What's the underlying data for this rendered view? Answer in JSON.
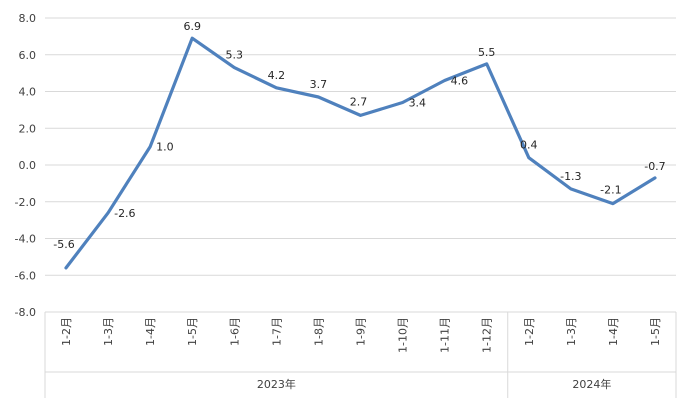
{
  "chart_data": {
    "type": "line",
    "title": "",
    "xlabel": "",
    "ylabel": "",
    "ylim": [
      -8,
      8
    ],
    "y_ticks": [
      "8.0",
      "6.0",
      "4.0",
      "2.0",
      "0.0",
      "-2.0",
      "-4.0",
      "-6.0",
      "-8.0"
    ],
    "grid": true,
    "legend": "none",
    "line_color": "#4F81BD",
    "categories": [
      "1-2月",
      "1-3月",
      "1-4月",
      "1-5月",
      "1-6月",
      "1-7月",
      "1-8月",
      "1-9月",
      "1-10月",
      "1-11月",
      "1-12月",
      "1-2月",
      "1-3月",
      "1-4月",
      "1-5月"
    ],
    "groups": [
      {
        "label": "2023年",
        "count": 11
      },
      {
        "label": "2024年",
        "count": 4
      }
    ],
    "series": [
      {
        "values": [
          -5.6,
          -2.6,
          1.0,
          6.9,
          5.3,
          4.2,
          3.7,
          2.7,
          3.4,
          4.6,
          5.5,
          0.4,
          -1.3,
          -2.1,
          -0.7
        ],
        "labels": [
          "-5.6",
          "-2.6",
          "1.0",
          "6.9",
          "5.3",
          "4.2",
          "3.7",
          "2.7",
          "3.4",
          "4.6",
          "5.5",
          "0.4",
          "-1.3",
          "-2.1",
          "-0.7"
        ]
      }
    ]
  }
}
